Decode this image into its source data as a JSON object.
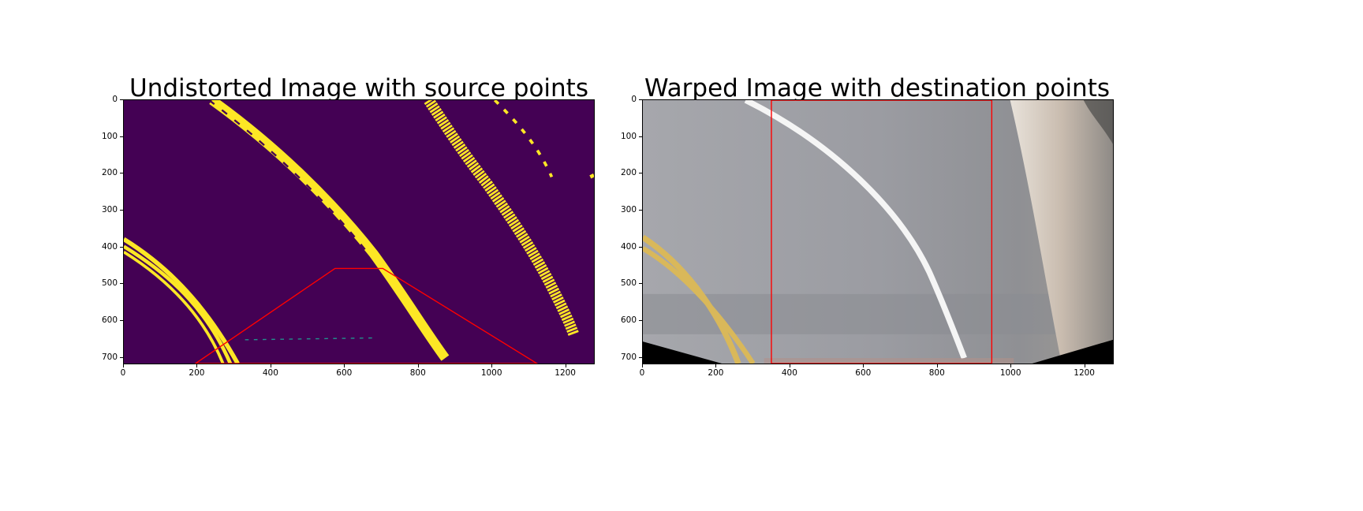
{
  "chart_data": [
    {
      "type": "image",
      "title": "Undistorted Image with source points",
      "image_extent": {
        "width": 1280,
        "height": 720
      },
      "xticks": [
        0,
        200,
        400,
        600,
        800,
        1000,
        1200
      ],
      "yticks": [
        0,
        100,
        200,
        300,
        400,
        500,
        600,
        700
      ],
      "xlim": [
        0,
        1280
      ],
      "ylim": [
        720,
        0
      ],
      "colormap": "viridis",
      "colors": {
        "background": "#440154",
        "lane": "#fde725",
        "overlay": "#ff0000"
      },
      "source_points": [
        [
          195,
          720
        ],
        [
          575,
          460
        ],
        [
          705,
          460
        ],
        [
          1125,
          720
        ]
      ]
    },
    {
      "type": "image",
      "title": "Warped Image with destination points",
      "image_extent": {
        "width": 1280,
        "height": 720
      },
      "xticks": [
        0,
        200,
        400,
        600,
        800,
        1000,
        1200
      ],
      "yticks": [
        0,
        100,
        200,
        300,
        400,
        500,
        600,
        700
      ],
      "xlim": [
        0,
        1280
      ],
      "ylim": [
        720,
        0
      ],
      "colors": {
        "road": "#9a9ca3",
        "lane_white": "#f5f5f5",
        "lane_yellow": "#d9b85a",
        "overlay": "#ff0000"
      },
      "destination_points": [
        [
          350,
          0
        ],
        [
          950,
          0
        ],
        [
          950,
          720
        ],
        [
          350,
          720
        ]
      ]
    }
  ]
}
